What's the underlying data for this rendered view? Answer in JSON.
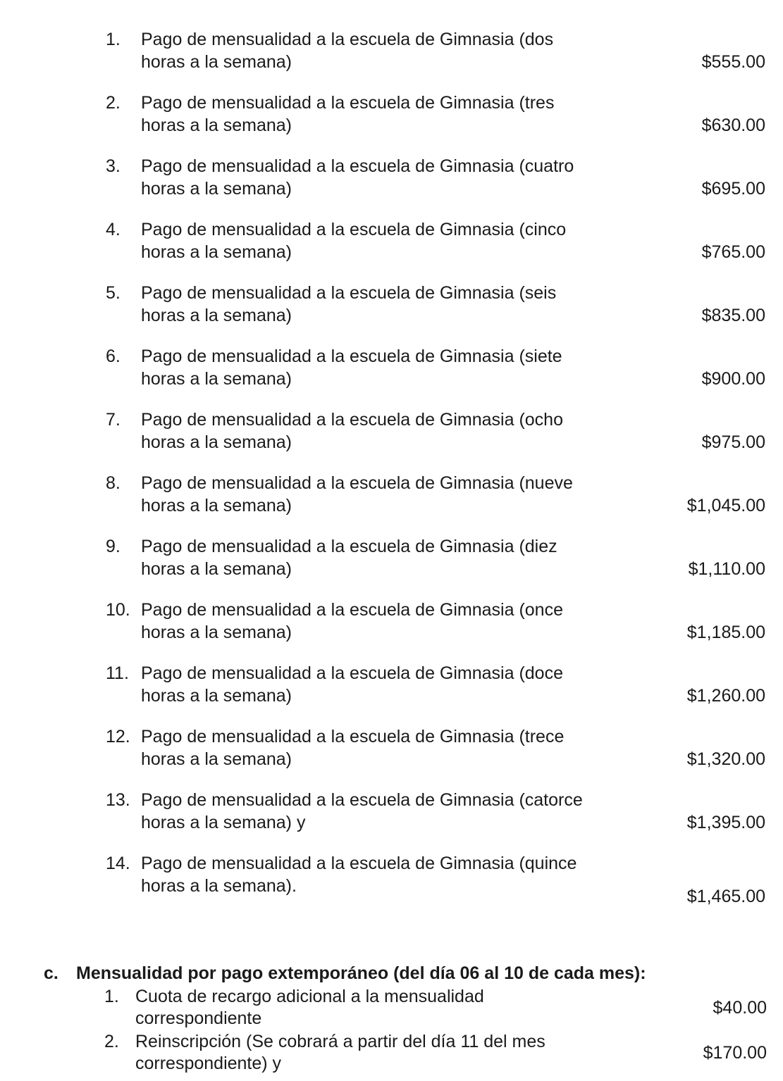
{
  "section_b_items": [
    {
      "number": "1.",
      "line1": "Pago de mensualidad a la escuela de Gimnasia (dos",
      "line2": "horas a la semana)",
      "price": "$555.00"
    },
    {
      "number": "2.",
      "line1": "Pago de mensualidad a la escuela de Gimnasia (tres",
      "line2": "horas a la semana)",
      "price": "$630.00"
    },
    {
      "number": "3.",
      "line1": "Pago de mensualidad a la escuela de Gimnasia (cuatro",
      "line2": "horas a la semana)",
      "price": "$695.00"
    },
    {
      "number": "4.",
      "line1": "Pago de mensualidad a la escuela de Gimnasia (cinco",
      "line2": "horas a la semana)",
      "price": "$765.00"
    },
    {
      "number": "5.",
      "line1": "Pago de mensualidad a la escuela de Gimnasia (seis",
      "line2": "horas a la semana)",
      "price": "$835.00"
    },
    {
      "number": "6.",
      "line1": "Pago de mensualidad a la escuela de Gimnasia (siete",
      "line2": "horas a la semana)",
      "price": "$900.00"
    },
    {
      "number": "7.",
      "line1": "Pago de mensualidad a la escuela de Gimnasia (ocho",
      "line2": "horas a la semana)",
      "price": "$975.00"
    },
    {
      "number": "8.",
      "line1": "Pago de mensualidad a la escuela de Gimnasia (nueve",
      "line2": "horas a la semana)",
      "price": "$1,045.00"
    },
    {
      "number": "9.",
      "line1": "Pago de mensualidad a la escuela de Gimnasia (diez",
      "line2": "horas a la semana)",
      "price": "$1,110.00"
    },
    {
      "number": "10.",
      "line1": "Pago de mensualidad a la escuela de Gimnasia (once",
      "line2": "horas a la semana)",
      "price": "$1,185.00"
    },
    {
      "number": "11.",
      "line1": "Pago de mensualidad a la escuela de Gimnasia (doce",
      "line2": "horas a la semana)",
      "price": "$1,260.00"
    },
    {
      "number": "12.",
      "line1": "Pago de mensualidad a la escuela de Gimnasia (trece",
      "line2": "horas a la semana)",
      "price": "$1,320.00"
    },
    {
      "number": "13.",
      "line1": "Pago de mensualidad a la escuela de Gimnasia (catorce",
      "line2": "horas a la semana) y",
      "price": "$1,395.00"
    },
    {
      "number": "14.",
      "line1": "Pago de mensualidad a la escuela de Gimnasia (quince",
      "line2": "horas a la semana).",
      "price": "$1,465.00"
    }
  ],
  "section_c": {
    "letter": "c.",
    "heading": "Mensualidad por pago extemporáneo (del día 06 al 10 de cada mes):",
    "items": [
      {
        "number": "1.",
        "line1": "Cuota de recargo adicional a la mensualidad",
        "line2": "correspondiente",
        "price": "$40.00"
      },
      {
        "number": "2.",
        "line1": "Reinscripción (Se cobrará a partir del día 11 del mes",
        "line2": "correspondiente) y",
        "price": "$170.00"
      }
    ]
  }
}
